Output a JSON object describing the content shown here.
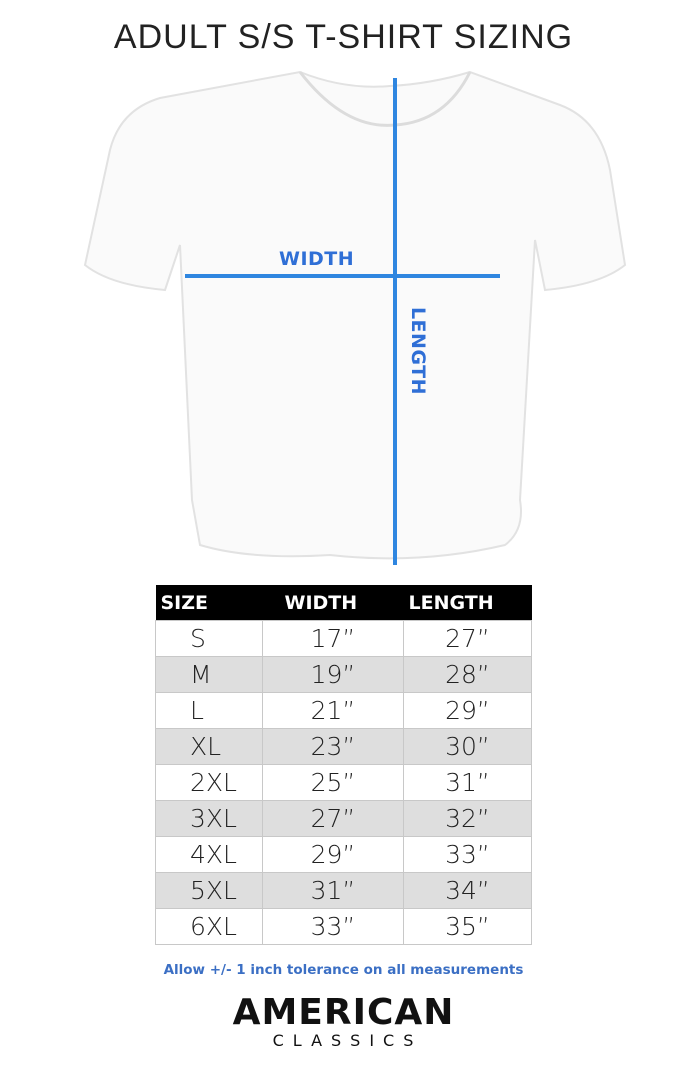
{
  "title": "ADULT S/S T-SHIRT SIZING",
  "diagram": {
    "width_label": "WIDTH",
    "length_label": "LENGTH",
    "line_color": "#2f86e0"
  },
  "table": {
    "headers": [
      "SIZE",
      "WIDTH",
      "LENGTH"
    ],
    "rows": [
      [
        "S",
        "17”",
        "27”"
      ],
      [
        "M",
        "19”",
        "28”"
      ],
      [
        "L",
        "21”",
        "29”"
      ],
      [
        "XL",
        "23”",
        "30”"
      ],
      [
        "2XL",
        "25”",
        "31”"
      ],
      [
        "3XL",
        "27”",
        "32”"
      ],
      [
        "4XL",
        "29”",
        "33”"
      ],
      [
        "5XL",
        "31”",
        "34”"
      ],
      [
        "6XL",
        "33”",
        "35”"
      ]
    ]
  },
  "note": "Allow +/- 1 inch tolerance on all measurements",
  "logo": {
    "line1": "AMERICAN",
    "line2": "CLASSICS"
  }
}
